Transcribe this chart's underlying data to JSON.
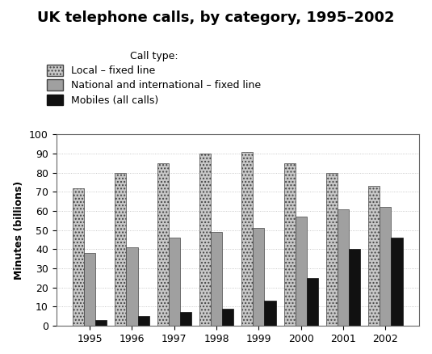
{
  "title": "UK telephone calls, by category, 1995–2002",
  "ylabel": "Minutes (billions)",
  "years": [
    1995,
    1996,
    1997,
    1998,
    1999,
    2000,
    2001,
    2002
  ],
  "local_fixed": [
    72,
    80,
    85,
    90,
    91,
    85,
    80,
    73
  ],
  "national_fixed": [
    38,
    41,
    46,
    49,
    51,
    57,
    61,
    62
  ],
  "mobiles": [
    3,
    5,
    7,
    9,
    13,
    25,
    40,
    46
  ],
  "ylim": [
    0,
    100
  ],
  "yticks": [
    0,
    10,
    20,
    30,
    40,
    50,
    60,
    70,
    80,
    90,
    100
  ],
  "legend_labels": [
    "Local – fixed line",
    "National and international – fixed line",
    "Mobiles (all calls)"
  ],
  "legend_title": "Call type:",
  "bar_width": 0.27,
  "title_fontsize": 13,
  "label_fontsize": 9,
  "tick_fontsize": 9
}
